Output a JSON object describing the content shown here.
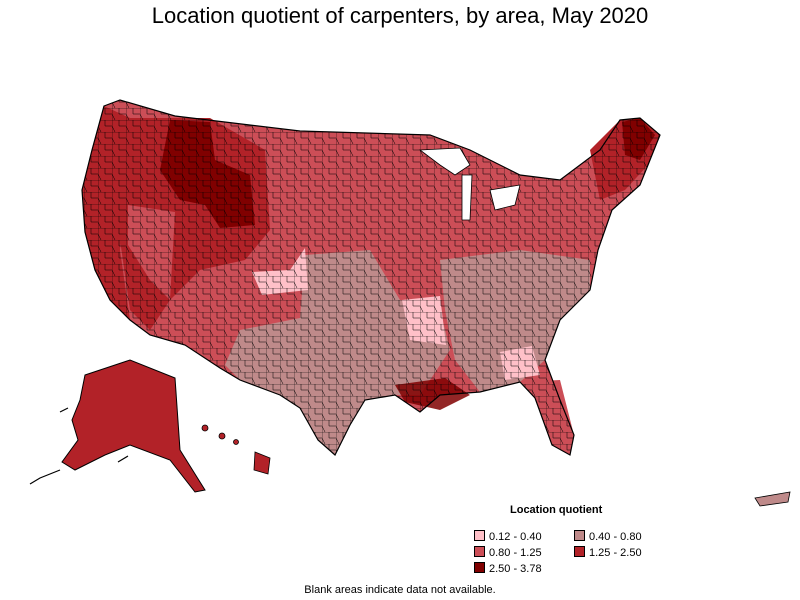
{
  "title": "Location quotient of carpenters, by area, May 2020",
  "legend": {
    "title": "Location quotient",
    "items": [
      {
        "label": "0.12 - 0.40",
        "color": "#ffc0c8"
      },
      {
        "label": "0.40 - 0.80",
        "color": "#bf8a8a"
      },
      {
        "label": "0.80 - 1.25",
        "color": "#cc4e57"
      },
      {
        "label": "1.25 - 2.50",
        "color": "#b22228"
      },
      {
        "label": "2.50 - 3.78",
        "color": "#800000"
      }
    ]
  },
  "note": "Blank areas indicate data not available."
}
